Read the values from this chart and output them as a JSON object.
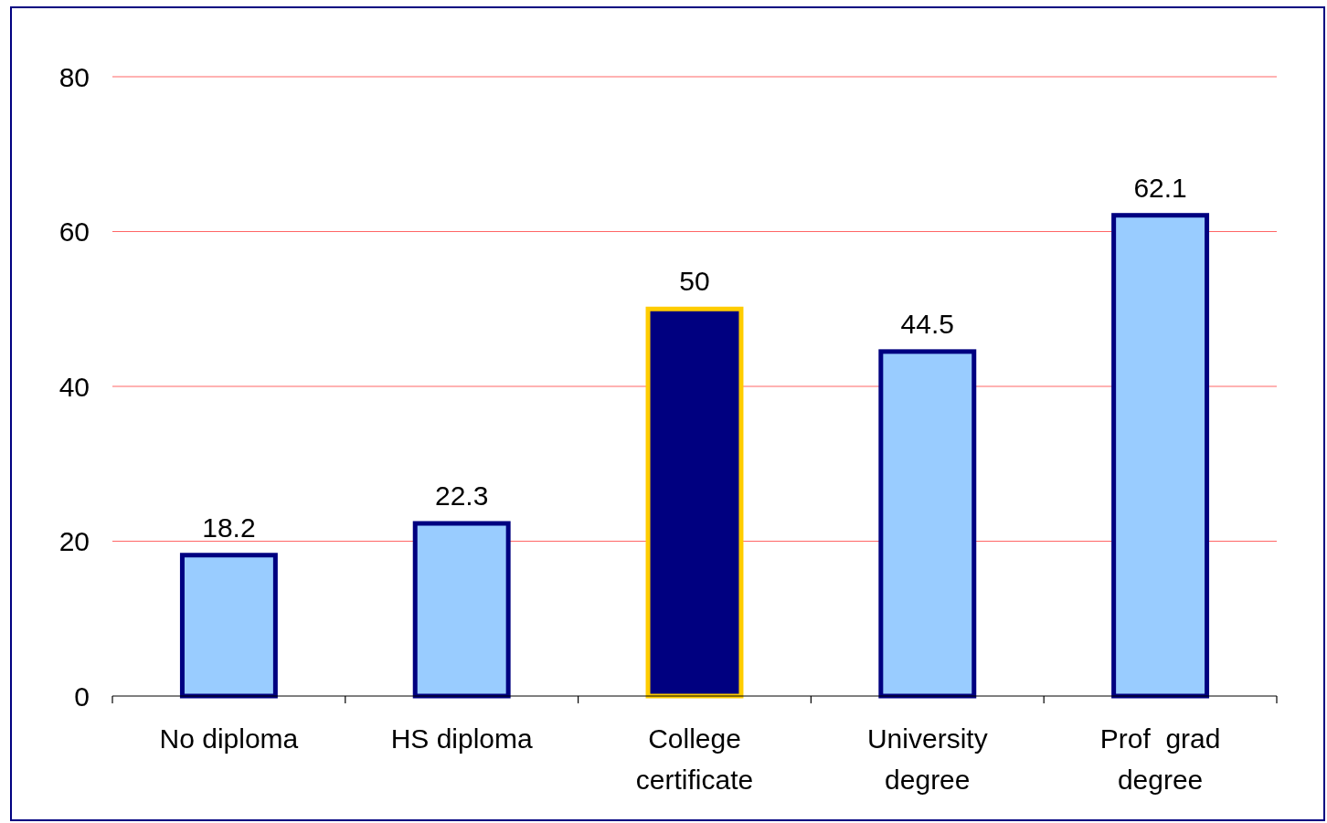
{
  "chart_data": {
    "type": "bar",
    "categories": [
      "No diploma",
      "HS diploma",
      "College certificate",
      "University degree",
      "Prof  grad degree"
    ],
    "values": [
      18.2,
      22.3,
      50,
      44.5,
      62.1
    ],
    "colors": [
      "#99ccff",
      "#99ccff",
      "#000080",
      "#99ccff",
      "#99ccff"
    ],
    "ylim": [
      0,
      80
    ],
    "yticks": [
      0,
      20,
      40,
      60,
      80
    ],
    "grid": "y",
    "data_labels": true
  }
}
